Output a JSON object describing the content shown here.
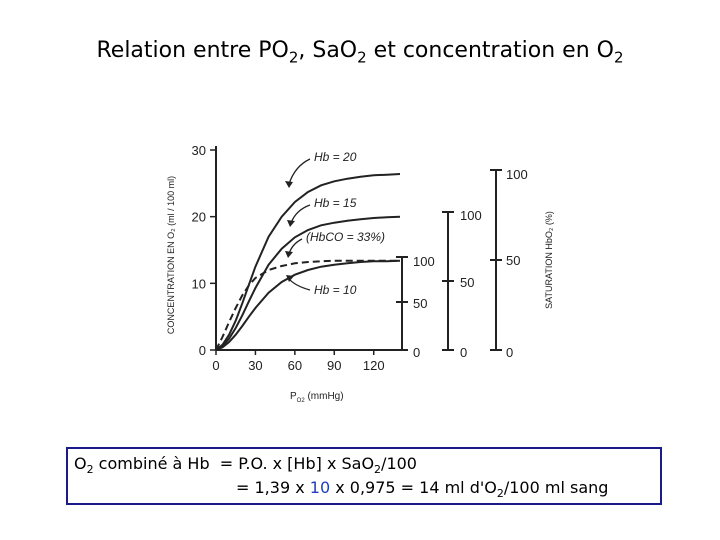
{
  "slide": {
    "title_parts": [
      "Relation entre PO",
      "2",
      ", SaO",
      "2",
      " et concentration en O",
      "2"
    ]
  },
  "chart_data": {
    "type": "line",
    "x_label_parts": [
      "P",
      "O2",
      " (mmHg)"
    ],
    "y_label_left": "CONCENTRATION EN O₂ (ml / 100 ml)",
    "y_label_right": "SATURATION HbO₂ (%)",
    "x_ticks": [
      0,
      30,
      60,
      90,
      120
    ],
    "y_ticks": [
      0,
      10,
      20,
      30
    ],
    "xlim": [
      0,
      140
    ],
    "ylim": [
      0,
      30
    ],
    "series": [
      {
        "name": "Hb = 20",
        "style": "solid",
        "x": [
          0,
          5,
          10,
          15,
          20,
          25,
          30,
          40,
          50,
          60,
          70,
          80,
          90,
          100,
          110,
          120,
          130,
          140
        ],
        "y": [
          0,
          0.8,
          2.3,
          4.4,
          7.0,
          9.8,
          12.5,
          17.0,
          20.0,
          22.2,
          23.7,
          24.7,
          25.3,
          25.7,
          26.0,
          26.2,
          26.3,
          26.4
        ]
      },
      {
        "name": "Hb = 15",
        "style": "solid",
        "x": [
          0,
          5,
          10,
          15,
          20,
          25,
          30,
          40,
          50,
          60,
          70,
          80,
          90,
          100,
          110,
          120,
          130,
          140
        ],
        "y": [
          0,
          0.6,
          1.7,
          3.3,
          5.2,
          7.3,
          9.3,
          12.8,
          15.2,
          16.9,
          18.0,
          18.7,
          19.1,
          19.4,
          19.6,
          19.8,
          19.9,
          20.0
        ]
      },
      {
        "name": "(HbCO = 33%)",
        "style": "dashed",
        "x": [
          0,
          5,
          10,
          15,
          20,
          25,
          30,
          40,
          50,
          60,
          70,
          80,
          90,
          100,
          110,
          120,
          130,
          140
        ],
        "y": [
          0,
          2.0,
          4.2,
          6.3,
          8.2,
          9.7,
          10.8,
          12.0,
          12.6,
          13.0,
          13.2,
          13.3,
          13.4,
          13.4,
          13.4,
          13.4,
          13.4,
          13.4
        ]
      },
      {
        "name": "Hb = 10",
        "style": "solid",
        "x": [
          0,
          5,
          10,
          15,
          20,
          25,
          30,
          40,
          50,
          60,
          70,
          80,
          90,
          100,
          110,
          120,
          130,
          140
        ],
        "y": [
          0,
          0.4,
          1.2,
          2.3,
          3.6,
          5.0,
          6.3,
          8.6,
          10.2,
          11.3,
          12.0,
          12.5,
          12.8,
          13.0,
          13.2,
          13.3,
          13.3,
          13.4
        ]
      }
    ],
    "saturation_scales": [
      {
        "ticks": [
          "100",
          "50",
          "0"
        ]
      },
      {
        "ticks": [
          "100",
          "50",
          "0"
        ]
      },
      {
        "ticks": [
          "100",
          "50",
          "0"
        ]
      }
    ]
  },
  "formula": {
    "line1_parts": [
      "O",
      "2",
      " combiné à Hb  = P.O. x [Hb] x SaO",
      "2",
      "/100"
    ],
    "line2_parts": [
      "= 1,39 x ",
      "10",
      " x 0,975 = 14 ml d'O",
      "2",
      "/100 ml sang"
    ]
  }
}
